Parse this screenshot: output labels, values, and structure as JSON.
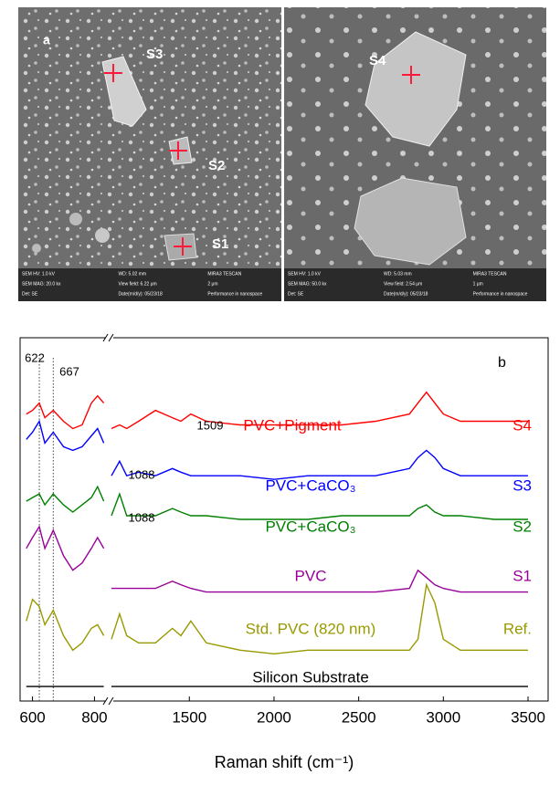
{
  "sem_images": [
    {
      "labels": [
        "a",
        "S3",
        "S2",
        "S1"
      ],
      "info": [
        "SEM HV: 1.0 kV",
        "WD: 5.02 mm",
        "MIRA3 TESCAN",
        "SEM MAG: 20.0 kx",
        "View field: 6.22 μm",
        "2 μm",
        "Det: SE",
        "Date(m/d/y): 05/23/18",
        "Performance in nanospace"
      ]
    },
    {
      "labels": [
        "S4"
      ],
      "info": [
        "SEM HV: 1.0 kV",
        "WD: 5.03 mm",
        "MIRA3 TESCAN",
        "SEM MAG: 50.0 kx",
        "View field: 2.54 μm",
        "1 μm",
        "Det: SE",
        "Date(m/d/y): 05/23/18",
        "Performance in nanospace"
      ]
    }
  ],
  "chart_data": {
    "type": "line",
    "panel_label": "b",
    "xlabel": "Raman shift (cm⁻¹)",
    "x": [
      580,
      600,
      622,
      640,
      667,
      700,
      730,
      760,
      790,
      810,
      830,
      1040,
      1088,
      1130,
      1200,
      1300,
      1400,
      1450,
      1509,
      1600,
      1800,
      2000,
      2200,
      2400,
      2600,
      2800,
      2850,
      2900,
      2950,
      3000,
      3100,
      3300,
      3500
    ],
    "xlim": [
      560,
      3500
    ],
    "axis_break": [
      840,
      1040
    ],
    "xticks": [
      600,
      800,
      1500,
      2000,
      2500,
      3000,
      3500
    ],
    "ylim": [
      0,
      100
    ],
    "reference_lines": [
      622,
      667
    ],
    "annotations": [
      "622",
      "667",
      "1509",
      "1088",
      "1088"
    ],
    "series": [
      {
        "name": "PVC+Pigment",
        "sample": "S4",
        "color": "#ff0000",
        "values": [
          79,
          80,
          82,
          78,
          80,
          77,
          75,
          76,
          82,
          84,
          82,
          75,
          76,
          75,
          77,
          80,
          78,
          77,
          79,
          77,
          76,
          76,
          76,
          76,
          77,
          79,
          82,
          85,
          82,
          79,
          77,
          77,
          77
        ]
      },
      {
        "name": "PVC+CaCO₃",
        "sample": "S3",
        "color": "#0000ff",
        "values": [
          72,
          74,
          77,
          71,
          74,
          70,
          69,
          70,
          73,
          75,
          71,
          62,
          66,
          62,
          63,
          62,
          64,
          63,
          62,
          62,
          62,
          61,
          62,
          62,
          62,
          64,
          67,
          69,
          67,
          64,
          62,
          62,
          62
        ]
      },
      {
        "name": "PVC+CaCO₃",
        "sample": "S2",
        "color": "#008000",
        "values": [
          55,
          56,
          57,
          54,
          57,
          54,
          52,
          54,
          56,
          59,
          55,
          51,
          57,
          51,
          51,
          51,
          53,
          52,
          51,
          51,
          50,
          50,
          50,
          51,
          51,
          51,
          53,
          54,
          52,
          51,
          51,
          50,
          50
        ]
      },
      {
        "name": "PVC",
        "sample": "S1",
        "color": "#990099",
        "values": [
          42,
          45,
          48,
          42,
          47,
          40,
          36,
          38,
          42,
          45,
          42,
          31,
          31,
          31,
          31,
          31,
          33,
          32,
          31,
          30,
          30,
          30,
          30,
          30,
          30,
          31,
          36,
          34,
          32,
          31,
          30,
          30,
          30
        ]
      },
      {
        "name": "Std. PVC (820 nm)",
        "sample": "Ref.",
        "color": "#999900",
        "values": [
          22,
          28,
          26,
          21,
          25,
          18,
          14,
          16,
          20,
          21,
          18,
          17,
          24,
          18,
          16,
          16,
          20,
          18,
          22,
          16,
          14,
          13,
          14,
          14,
          14,
          14,
          17,
          32,
          27,
          17,
          14,
          14,
          14
        ]
      },
      {
        "name": "Silicon Substrate",
        "color": "#000000",
        "values": [
          4,
          4,
          4,
          4,
          4,
          4,
          4,
          4,
          4,
          4,
          4,
          4,
          4,
          4,
          4,
          4,
          4,
          4,
          4,
          4,
          4,
          4,
          4,
          4,
          4,
          4,
          4,
          4,
          4,
          4,
          4,
          4,
          4
        ]
      }
    ]
  }
}
